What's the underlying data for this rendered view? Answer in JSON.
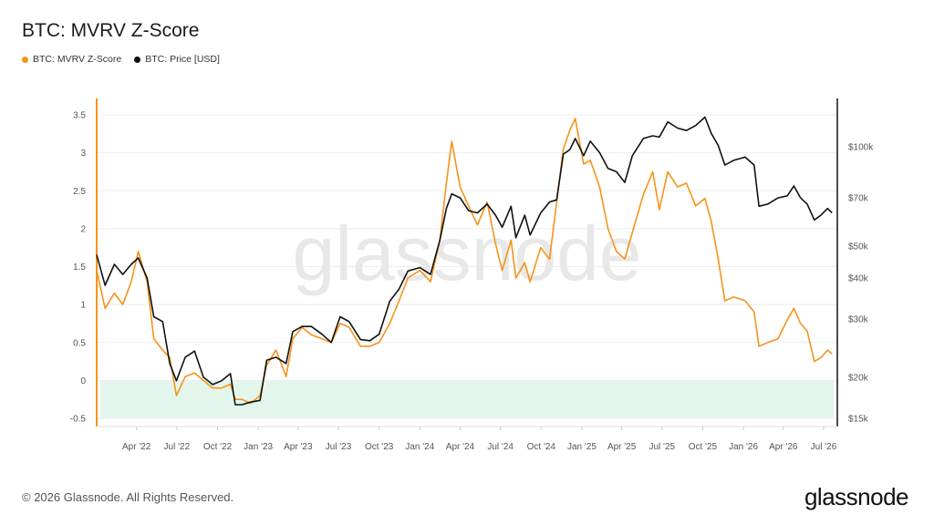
{
  "chart_data": {
    "type": "line",
    "title": "BTC: MVRV Z-Score",
    "x_ticks": [
      "Apr '22",
      "Jul '22",
      "Oct '22",
      "Jan '23",
      "Apr '23",
      "Jul '23",
      "Oct '23",
      "Jan '24",
      "Apr '24",
      "Jul '24",
      "Oct '24",
      "Jan '25",
      "Apr '25",
      "Jul '25",
      "Oct '25",
      "Jan '26",
      "Apr '26",
      "Jul '26"
    ],
    "y_left": {
      "ticks": [
        "3.5",
        "3",
        "2.5",
        "2",
        "1.5",
        "1",
        "0.5",
        "0",
        "-0.5"
      ],
      "range": [
        -0.5,
        3.5
      ]
    },
    "y_right": {
      "ticks": [
        "$100k",
        "$70k",
        "$50k",
        "$40k",
        "$30k",
        "$20k",
        "$15k"
      ],
      "scale": "log",
      "range": [
        15000,
        125000
      ]
    },
    "shaded_band": {
      "from": -0.5,
      "to": 0,
      "color": "#e3f6ec"
    },
    "grid": true,
    "watermark": "glassnode",
    "series": [
      {
        "name": "BTC: MVRV Z-Score",
        "axis": "left",
        "color": "#f7931a",
        "x": [
          "2022-01-01",
          "2022-01-20",
          "2022-02-10",
          "2022-03-01",
          "2022-03-20",
          "2022-04-05",
          "2022-04-25",
          "2022-05-10",
          "2022-05-30",
          "2022-06-15",
          "2022-06-30",
          "2022-07-20",
          "2022-08-10",
          "2022-08-30",
          "2022-09-20",
          "2022-10-10",
          "2022-10-30",
          "2022-11-10",
          "2022-11-25",
          "2022-12-15",
          "2023-01-05",
          "2023-01-20",
          "2023-02-10",
          "2023-03-05",
          "2023-03-20",
          "2023-04-10",
          "2023-05-01",
          "2023-05-25",
          "2023-06-15",
          "2023-07-05",
          "2023-07-25",
          "2023-08-20",
          "2023-09-10",
          "2023-10-01",
          "2023-10-25",
          "2023-11-15",
          "2023-12-05",
          "2024-01-01",
          "2024-01-25",
          "2024-02-15",
          "2024-03-01",
          "2024-03-13",
          "2024-04-01",
          "2024-04-20",
          "2024-05-10",
          "2024-06-01",
          "2024-06-20",
          "2024-07-05",
          "2024-07-25",
          "2024-08-05",
          "2024-08-25",
          "2024-09-06",
          "2024-09-30",
          "2024-10-20",
          "2024-11-05",
          "2024-11-20",
          "2024-12-05",
          "2024-12-17",
          "2025-01-05",
          "2025-01-20",
          "2025-02-10",
          "2025-03-01",
          "2025-03-20",
          "2025-04-08",
          "2025-04-25",
          "2025-05-20",
          "2025-06-10",
          "2025-06-25",
          "2025-07-14",
          "2025-08-05",
          "2025-08-25",
          "2025-09-15",
          "2025-10-06",
          "2025-10-20",
          "2025-11-05",
          "2025-11-20",
          "2025-12-10",
          "2026-01-05",
          "2026-01-25",
          "2026-02-05",
          "2026-02-25",
          "2026-03-20",
          "2026-04-10",
          "2026-04-25",
          "2026-05-10",
          "2026-05-25",
          "2026-06-10",
          "2026-06-25",
          "2026-07-10",
          "2026-07-20"
        ],
        "y": [
          1.45,
          0.95,
          1.15,
          1.0,
          1.3,
          1.7,
          1.3,
          0.55,
          0.4,
          0.3,
          -0.2,
          0.05,
          0.1,
          0.0,
          -0.1,
          -0.1,
          -0.05,
          -0.25,
          -0.25,
          -0.3,
          -0.2,
          0.2,
          0.4,
          0.05,
          0.55,
          0.7,
          0.6,
          0.55,
          0.5,
          0.75,
          0.7,
          0.45,
          0.45,
          0.5,
          0.75,
          1.05,
          1.35,
          1.45,
          1.3,
          1.85,
          2.6,
          3.15,
          2.55,
          2.3,
          2.05,
          2.35,
          1.8,
          1.45,
          1.85,
          1.35,
          1.55,
          1.3,
          1.75,
          1.6,
          2.35,
          3.05,
          3.3,
          3.45,
          2.85,
          2.9,
          2.55,
          2.0,
          1.7,
          1.6,
          1.95,
          2.45,
          2.75,
          2.25,
          2.75,
          2.55,
          2.6,
          2.3,
          2.4,
          2.1,
          1.6,
          1.05,
          1.1,
          1.05,
          0.9,
          0.45,
          0.5,
          0.55,
          0.8,
          0.95,
          0.75,
          0.65,
          0.25,
          0.3,
          0.4,
          0.35
        ]
      },
      {
        "name": "BTC: Price [USD]",
        "axis": "right",
        "color": "#111111",
        "x": [
          "2022-01-01",
          "2022-01-20",
          "2022-02-10",
          "2022-03-01",
          "2022-03-20",
          "2022-04-05",
          "2022-04-25",
          "2022-05-10",
          "2022-05-30",
          "2022-06-15",
          "2022-06-30",
          "2022-07-20",
          "2022-08-10",
          "2022-08-30",
          "2022-09-20",
          "2022-10-10",
          "2022-10-30",
          "2022-11-10",
          "2022-11-25",
          "2022-12-15",
          "2023-01-05",
          "2023-01-20",
          "2023-02-10",
          "2023-03-05",
          "2023-03-20",
          "2023-04-10",
          "2023-05-01",
          "2023-05-25",
          "2023-06-15",
          "2023-07-05",
          "2023-07-25",
          "2023-08-20",
          "2023-09-10",
          "2023-10-01",
          "2023-10-25",
          "2023-11-15",
          "2023-12-05",
          "2024-01-01",
          "2024-01-25",
          "2024-02-15",
          "2024-03-01",
          "2024-03-13",
          "2024-04-01",
          "2024-04-20",
          "2024-05-10",
          "2024-06-01",
          "2024-06-20",
          "2024-07-05",
          "2024-07-25",
          "2024-08-05",
          "2024-08-25",
          "2024-09-06",
          "2024-09-30",
          "2024-10-20",
          "2024-11-05",
          "2024-11-20",
          "2024-12-05",
          "2024-12-17",
          "2025-01-05",
          "2025-01-20",
          "2025-02-10",
          "2025-03-01",
          "2025-03-20",
          "2025-04-08",
          "2025-04-25",
          "2025-05-20",
          "2025-06-10",
          "2025-06-25",
          "2025-07-14",
          "2025-08-05",
          "2025-08-25",
          "2025-09-15",
          "2025-10-06",
          "2025-10-20",
          "2025-11-05",
          "2025-11-20",
          "2025-12-10",
          "2026-01-05",
          "2026-01-25",
          "2026-02-05",
          "2026-02-25",
          "2026-03-20",
          "2026-04-10",
          "2026-04-25",
          "2026-05-10",
          "2026-05-25",
          "2026-06-10",
          "2026-06-25",
          "2026-07-10",
          "2026-07-20"
        ],
        "y": [
          47000,
          38000,
          44000,
          41000,
          44000,
          46000,
          40000,
          30500,
          29500,
          22000,
          19500,
          23000,
          24000,
          20000,
          19000,
          19500,
          20500,
          16500,
          16500,
          16800,
          17000,
          22500,
          23000,
          22000,
          27500,
          28500,
          28500,
          27000,
          25500,
          30500,
          29500,
          26000,
          25800,
          27000,
          34000,
          37000,
          42000,
          43000,
          41000,
          52000,
          65000,
          72000,
          70000,
          64000,
          63000,
          67000,
          62000,
          57000,
          66000,
          53000,
          62000,
          54000,
          63000,
          68000,
          69000,
          95000,
          98000,
          106000,
          94000,
          104000,
          96000,
          86000,
          84000,
          78000,
          94000,
          106000,
          108000,
          107000,
          119000,
          114000,
          112000,
          116000,
          123000,
          110000,
          101000,
          88000,
          91000,
          93000,
          88000,
          66000,
          67000,
          70000,
          71000,
          76000,
          70000,
          67000,
          60000,
          62000,
          65000,
          63000
        ]
      }
    ]
  },
  "header": {
    "legend": [
      {
        "label": "BTC: MVRV Z-Score",
        "color": "#f7931a"
      },
      {
        "label": "BTC: Price [USD]",
        "color": "#111111"
      }
    ]
  },
  "footer": {
    "copyright": "© 2026 Glassnode. All Rights Reserved.",
    "brand": "glassnode"
  }
}
